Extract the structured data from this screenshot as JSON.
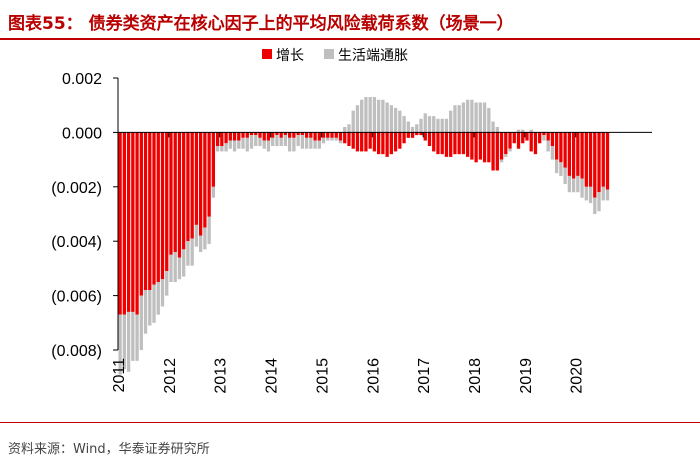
{
  "figure": {
    "title": "图表55：  债券类资产在核心因子上的平均风险载荷系数（场景一）",
    "source": "资料来源：Wind，华泰证券研究所"
  },
  "colors": {
    "growth": "#ee0000",
    "inflation": "#bfbfbf",
    "accent": "#c00000"
  },
  "chart_data": {
    "type": "bar",
    "stacked": true,
    "title": "",
    "xlabel": "",
    "ylabel": "",
    "ylim": [
      -0.008,
      0.002
    ],
    "y_ticks": [
      0.002,
      0.0,
      -0.002,
      -0.004,
      -0.006,
      -0.008
    ],
    "y_tick_labels": [
      "0.002",
      "0.000",
      "(0.002)",
      "(0.004)",
      "(0.006)",
      "(0.008)"
    ],
    "x_tick_labels": [
      "2011",
      "2012",
      "2013",
      "2014",
      "2015",
      "2016",
      "2017",
      "2018",
      "2019",
      "2020"
    ],
    "x_start": "2011-01",
    "frequency": "monthly",
    "legend": {
      "position": "top-center"
    },
    "series": [
      {
        "name": "增长",
        "values": [
          -0.0067,
          -0.0067,
          -0.0066,
          -0.0066,
          -0.0067,
          -0.006,
          -0.0058,
          -0.0058,
          -0.0056,
          -0.0055,
          -0.0054,
          -0.0051,
          -0.0045,
          -0.0044,
          -0.0046,
          -0.0043,
          -0.004,
          -0.0039,
          -0.0034,
          -0.0038,
          -0.0035,
          -0.0031,
          -0.002,
          -0.0005,
          -0.0005,
          -0.0004,
          -0.0003,
          -0.0003,
          -0.0003,
          -0.0002,
          -0.0002,
          -0.0001,
          -0.0001,
          -0.0002,
          -0.0003,
          -0.0003,
          -0.0002,
          -0.0001,
          -0.0002,
          -0.0001,
          -0.0002,
          -0.0002,
          -0.0001,
          -0.0001,
          -0.0002,
          -0.0002,
          -0.0003,
          -0.0003,
          -0.0002,
          -0.0002,
          -0.0002,
          -0.0002,
          -0.0003,
          -0.0004,
          -0.0005,
          -0.0006,
          -0.0007,
          -0.0007,
          -0.0007,
          -0.0006,
          -0.0007,
          -0.0008,
          -0.0008,
          -0.0009,
          -0.0008,
          -0.0007,
          -0.0006,
          -0.0004,
          -0.0002,
          -0.0002,
          -0.0001,
          -0.0001,
          -0.0003,
          -0.0005,
          -0.0007,
          -0.0008,
          -0.0008,
          -0.0009,
          -0.0009,
          -0.0008,
          -0.0008,
          -0.0008,
          -0.0009,
          -0.001,
          -0.0011,
          -0.001,
          -0.0011,
          -0.0011,
          -0.0014,
          -0.0014,
          -0.001,
          -0.0008,
          -0.0006,
          -0.0004,
          -0.0006,
          -0.0004,
          -0.0003,
          -0.0007,
          -0.0008,
          -0.0004,
          -0.0001,
          -0.0003,
          -0.0005,
          -0.001,
          -0.0011,
          -0.0013,
          -0.0016,
          -0.0017,
          -0.0016,
          -0.0017,
          -0.002,
          -0.002,
          -0.0024,
          -0.0022,
          -0.002,
          -0.0021
        ]
      },
      {
        "name": "生活端通胀",
        "values": [
          -0.0022,
          -0.002,
          -0.0022,
          -0.0018,
          -0.0017,
          -0.002,
          -0.0016,
          -0.0013,
          -0.0014,
          -0.0012,
          -0.001,
          -0.0009,
          -0.001,
          -0.0011,
          -0.0008,
          -0.001,
          -0.0009,
          -0.001,
          -0.0008,
          -0.0006,
          -0.0008,
          -0.001,
          -0.0004,
          -0.0002,
          -0.0002,
          -0.0003,
          -0.0003,
          -0.0004,
          -0.0003,
          -0.0004,
          -0.0005,
          -0.0005,
          -0.0004,
          -0.0003,
          -0.0003,
          -0.0004,
          -0.0003,
          -0.0004,
          -0.0003,
          -0.0004,
          -0.0005,
          -0.0005,
          -0.0004,
          -0.0005,
          -0.0004,
          -0.0004,
          -0.0003,
          -0.0003,
          -0.0002,
          -0.0001,
          -0.0001,
          -0.0001,
          -0.0001,
          0.0002,
          0.0003,
          0.0008,
          0.001,
          0.0012,
          0.0013,
          0.0013,
          0.0013,
          0.0012,
          0.0012,
          0.0011,
          0.001,
          0.0009,
          0.0008,
          0.0006,
          0.0004,
          0.0002,
          0.0003,
          0.0005,
          0.0007,
          0.0006,
          0.0006,
          0.0005,
          0.0005,
          0.0005,
          0.0008,
          0.001,
          0.001,
          0.0011,
          0.0012,
          0.0012,
          0.0011,
          0.0011,
          0.0011,
          0.0009,
          0.0004,
          0.0002,
          -0.0001,
          -0.0001,
          -0.0001,
          0.0,
          0.0001,
          0.0001,
          0.0,
          0.0001,
          0.0,
          0.0,
          -0.0002,
          -0.0004,
          -0.0005,
          -0.0005,
          -0.0005,
          -0.0006,
          -0.0006,
          -0.0005,
          -0.0006,
          -0.0007,
          -0.0005,
          -0.0006,
          -0.0006,
          -0.0007,
          -0.0005,
          -0.0004
        ]
      }
    ]
  }
}
